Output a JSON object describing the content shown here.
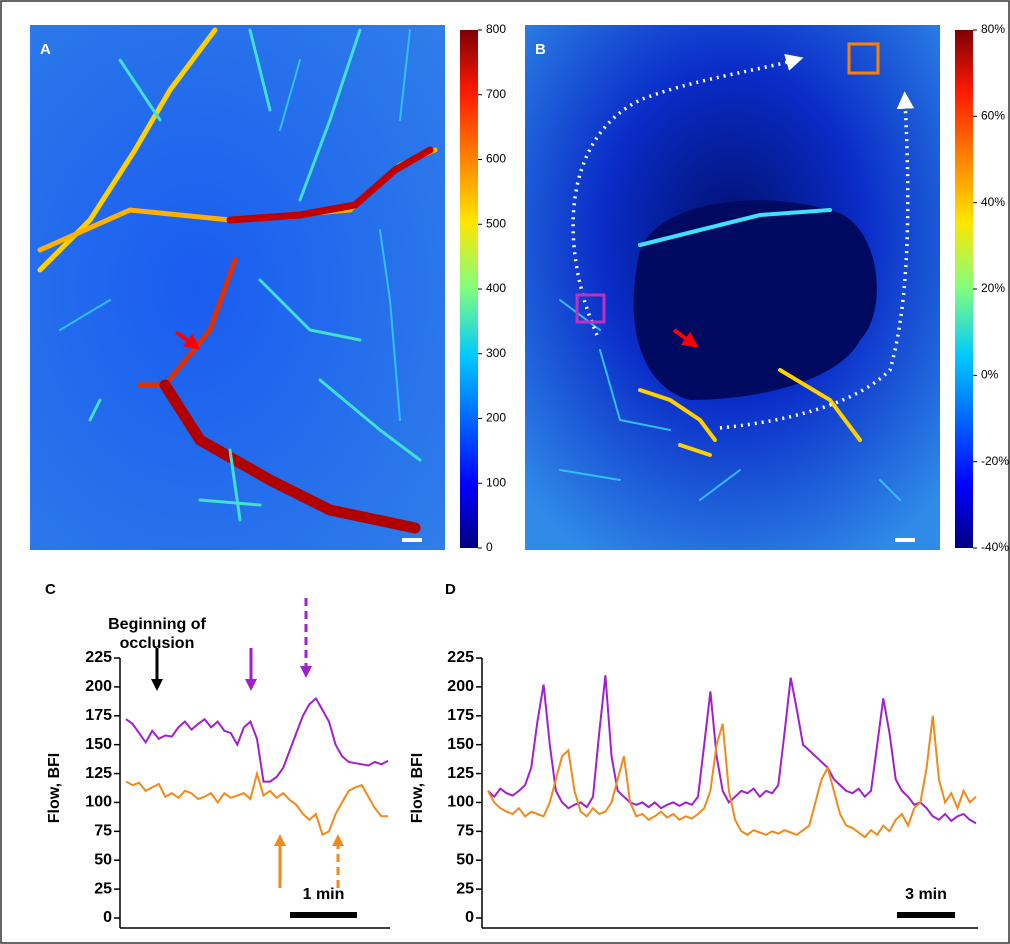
{
  "chart_data": [
    {
      "type": "heatmap",
      "panel": "A",
      "colormap": "jet",
      "clim": [
        0,
        800
      ],
      "cticks": [
        0,
        100,
        200,
        300,
        400,
        500,
        600,
        700,
        800
      ]
    },
    {
      "type": "heatmap",
      "panel": "B",
      "colormap": "jet",
      "clim": [
        -40,
        80
      ],
      "cticks": [
        {
          "value": -40,
          "label": "-40%"
        },
        {
          "value": -20,
          "label": "-20%"
        },
        {
          "value": 0,
          "label": "0%"
        },
        {
          "value": 20,
          "label": "20%"
        },
        {
          "value": 40,
          "label": "40%"
        },
        {
          "value": 60,
          "label": "60%"
        },
        {
          "value": 80,
          "label": "80%"
        }
      ]
    },
    {
      "type": "line",
      "panel": "C",
      "ylabel": "Flow, BFI",
      "ylim": [
        0,
        225
      ],
      "yticks": [
        0,
        25,
        50,
        75,
        100,
        125,
        150,
        175,
        200,
        225
      ],
      "annotation": [
        "Beginning of",
        "occlusion"
      ],
      "scale_bar": "1 min",
      "series": [
        {
          "color": "#a020d0",
          "values": [
            172,
            168,
            160,
            152,
            162,
            155,
            158,
            157,
            165,
            170,
            163,
            168,
            172,
            165,
            170,
            162,
            160,
            150,
            165,
            170,
            155,
            118,
            118,
            122,
            130,
            145,
            160,
            175,
            185,
            190,
            180,
            170,
            150,
            140,
            135,
            134,
            133,
            132,
            135,
            133,
            136
          ]
        },
        {
          "color": "#f08a1c",
          "values": [
            118,
            115,
            117,
            110,
            113,
            116,
            105,
            108,
            104,
            110,
            108,
            103,
            105,
            108,
            100,
            108,
            104,
            106,
            108,
            103,
            125,
            106,
            110,
            104,
            108,
            102,
            98,
            90,
            85,
            90,
            72,
            75,
            90,
            100,
            110,
            113,
            115,
            105,
            95,
            88,
            88
          ]
        }
      ]
    },
    {
      "type": "line",
      "panel": "D",
      "ylabel": "Flow, BFI",
      "ylim": [
        0,
        225
      ],
      "yticks": [
        0,
        25,
        50,
        75,
        100,
        125,
        150,
        175,
        200,
        225
      ],
      "scale_bar": "3 min",
      "series": [
        {
          "color": "#a020d0",
          "values": [
            110,
            105,
            112,
            108,
            106,
            110,
            115,
            130,
            170,
            202,
            150,
            110,
            100,
            95,
            98,
            100,
            96,
            105,
            160,
            210,
            140,
            110,
            105,
            100,
            98,
            100,
            96,
            100,
            95,
            98,
            100,
            97,
            100,
            98,
            105,
            150,
            196,
            140,
            110,
            100,
            105,
            110,
            108,
            112,
            105,
            110,
            108,
            115,
            160,
            208,
            180,
            150,
            145,
            140,
            135,
            130,
            120,
            115,
            110,
            108,
            112,
            105,
            110,
            150,
            190,
            160,
            120,
            110,
            105,
            98,
            100,
            95,
            88,
            85,
            90,
            84,
            88,
            90,
            85,
            82
          ]
        },
        {
          "color": "#f08a1c",
          "values": [
            110,
            100,
            95,
            92,
            90,
            95,
            88,
            92,
            90,
            88,
            100,
            120,
            140,
            145,
            110,
            92,
            88,
            95,
            90,
            92,
            100,
            120,
            140,
            100,
            88,
            90,
            85,
            88,
            92,
            87,
            90,
            85,
            88,
            86,
            90,
            95,
            110,
            150,
            168,
            110,
            85,
            75,
            72,
            76,
            74,
            72,
            75,
            73,
            76,
            74,
            72,
            76,
            80,
            100,
            120,
            130,
            110,
            90,
            80,
            78,
            74,
            70,
            76,
            72,
            80,
            75,
            85,
            90,
            80,
            95,
            100,
            130,
            175,
            120,
            100,
            108,
            95,
            110,
            100,
            105
          ]
        }
      ]
    }
  ]
}
